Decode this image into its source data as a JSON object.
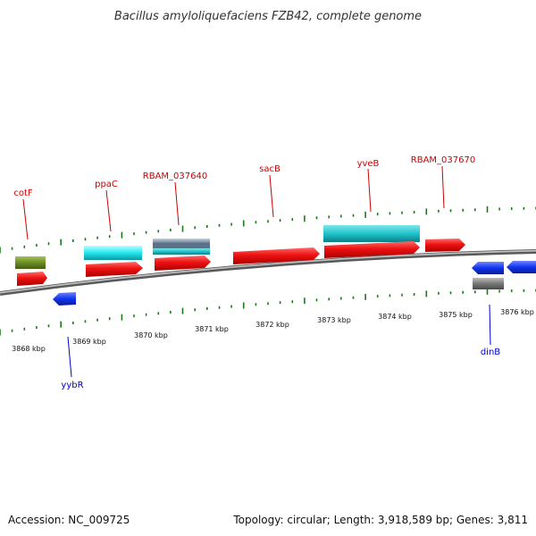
{
  "title": "Bacillus amyloliquefaciens FZB42, complete genome",
  "footer": {
    "accession": "Accession: NC_009725",
    "summary": "Topology: circular; Length: 3,918,589 bp; Genes: 3,811"
  },
  "colors": {
    "forward_label": "#cc0000",
    "reverse_label": "#0000cc",
    "tick": "#1a7a1a",
    "backbone": "#777777",
    "red_feature": "#ee1111",
    "cyan_feature": "#22e0e8",
    "teal_feature": "#20c4cc",
    "olive_feature": "#6b8e23",
    "blue_feature": "#1133ee",
    "gray_feature": "#777777",
    "steel_feature": "#8ca0b4"
  },
  "axis_labels": [
    "3868 kbp",
    "3869 kbp",
    "3870 kbp",
    "3871 kbp",
    "3872 kbp",
    "3873 kbp",
    "3874 kbp",
    "3875 kbp",
    "3876 kbp"
  ],
  "gene_labels": {
    "cotF": "cotF",
    "ppaC": "ppaC",
    "RBAM_037640": "RBAM_037640",
    "sacB": "sacB",
    "yveB": "yveB",
    "RBAM_037670": "RBAM_037670",
    "yybR": "yybR",
    "dinB": "dinB"
  }
}
